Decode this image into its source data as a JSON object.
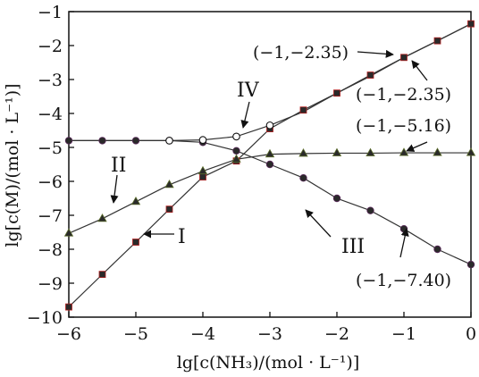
{
  "chart_data": {
    "type": "line",
    "title": "",
    "xlabel": "lg[c(NH₃)/(mol · L⁻¹)]",
    "ylabel": "lg[c(M)/(mol · L⁻¹)]",
    "xlim": [
      -6,
      0
    ],
    "ylim": [
      -10,
      -1
    ],
    "x_ticks": [
      "-6",
      "-5",
      "-4",
      "-3",
      "-2",
      "-1",
      "0"
    ],
    "y_ticks": [
      "-1",
      "-2",
      "-3",
      "-4",
      "-5",
      "-6",
      "-7",
      "-8",
      "-9",
      "-10"
    ],
    "grid": false,
    "series": [
      {
        "name": "I",
        "marker": "square",
        "x": [
          -6,
          -5.5,
          -5,
          -4.5,
          -4,
          -3.5,
          -3,
          -2.5,
          -2,
          -1.5,
          -1,
          -0.5,
          0
        ],
        "y": [
          -9.7,
          -8.74,
          -7.79,
          -6.82,
          -5.87,
          -5.4,
          -4.45,
          -3.9,
          -3.4,
          -2.87,
          -2.35,
          -1.86,
          -1.36
        ]
      },
      {
        "name": "II",
        "marker": "triangle",
        "x": [
          -6,
          -5.5,
          -5,
          -4.5,
          -4,
          -3.5,
          -3,
          -2.5,
          -2,
          -1.5,
          -1,
          -0.5,
          0
        ],
        "y": [
          -7.53,
          -7.1,
          -6.6,
          -6.1,
          -5.7,
          -5.35,
          -5.2,
          -5.18,
          -5.17,
          -5.17,
          -5.16,
          -5.16,
          -5.16
        ]
      },
      {
        "name": "III",
        "marker": "circle-filled",
        "x": [
          -6,
          -5.5,
          -5,
          -4.5,
          -4,
          -3.5,
          -3,
          -2.5,
          -2,
          -1.5,
          -1,
          -0.5,
          0
        ],
        "y": [
          -4.8,
          -4.8,
          -4.8,
          -4.8,
          -4.85,
          -5.1,
          -5.5,
          -5.9,
          -6.5,
          -6.86,
          -7.4,
          -8.0,
          -8.45
        ]
      },
      {
        "name": "IV",
        "marker": "circle-open",
        "x": [
          -6,
          -5.5,
          -5,
          -4.5,
          -4,
          -3.5,
          -3,
          -2.5,
          -2,
          -1.5,
          -1,
          -0.5,
          0
        ],
        "y": [
          -4.8,
          -4.8,
          -4.8,
          -4.8,
          -4.78,
          -4.68,
          -4.35,
          -3.95,
          -3.4,
          -2.9,
          -2.35,
          -1.86,
          -1.36
        ]
      }
    ],
    "annotations": [
      {
        "text": "(−1,−2.35)",
        "x": -1,
        "y": -2.35
      },
      {
        "text": "(−1,−2.35)",
        "x": -1,
        "y": -2.35
      },
      {
        "text": "(−1,−5.16)",
        "x": -1,
        "y": -5.16
      },
      {
        "text": "(−1,−7.40)",
        "x": -1,
        "y": -7.4
      }
    ]
  }
}
